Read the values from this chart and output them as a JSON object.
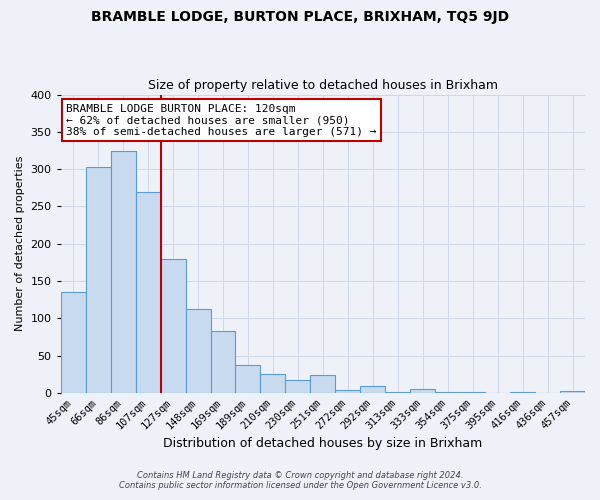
{
  "title": "BRAMBLE LODGE, BURTON PLACE, BRIXHAM, TQ5 9JD",
  "subtitle": "Size of property relative to detached houses in Brixham",
  "xlabel": "Distribution of detached houses by size in Brixham",
  "ylabel": "Number of detached properties",
  "footer_line1": "Contains HM Land Registry data © Crown copyright and database right 2024.",
  "footer_line2": "Contains public sector information licensed under the Open Government Licence v3.0.",
  "bin_labels": [
    "45sqm",
    "66sqm",
    "86sqm",
    "107sqm",
    "127sqm",
    "148sqm",
    "169sqm",
    "189sqm",
    "210sqm",
    "230sqm",
    "251sqm",
    "272sqm",
    "292sqm",
    "313sqm",
    "333sqm",
    "354sqm",
    "375sqm",
    "395sqm",
    "416sqm",
    "436sqm",
    "457sqm"
  ],
  "bar_heights": [
    135,
    303,
    325,
    270,
    180,
    113,
    83,
    37,
    26,
    17,
    24,
    4,
    10,
    1,
    5,
    1,
    1,
    0,
    1,
    0,
    3
  ],
  "bar_color": "#c8daf0",
  "bar_edge_color": "#5b9bd5",
  "highlight_line_index": 3,
  "highlight_line_color": "#c00000",
  "annotation_title": "BRAMBLE LODGE BURTON PLACE: 120sqm",
  "annotation_line2": "← 62% of detached houses are smaller (950)",
  "annotation_line3": "38% of semi-detached houses are larger (571) →",
  "annotation_box_color": "#ffffff",
  "annotation_box_edge": "#c00000",
  "ylim": [
    0,
    400
  ],
  "yticks": [
    0,
    50,
    100,
    150,
    200,
    250,
    300,
    350,
    400
  ],
  "background_color": "#eef2f8",
  "plot_bg_color": "#eef2f8",
  "grid_color": "#d0d8e8"
}
